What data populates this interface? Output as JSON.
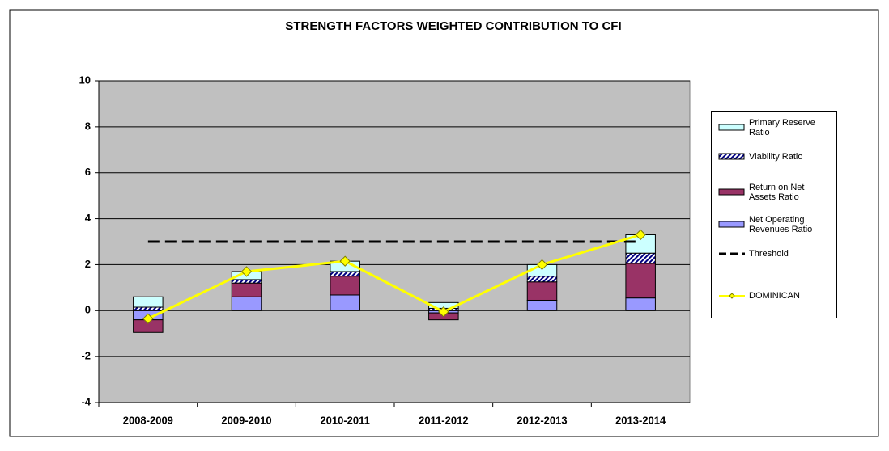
{
  "chart_data": {
    "type": "bar",
    "stacked": true,
    "title": "STRENGTH FACTORS WEIGHTED CONTRIBUTION TO CFI",
    "categories": [
      "2008-2009",
      "2009-2010",
      "2010-2011",
      "2011-2012",
      "2012-2013",
      "2013-2014"
    ],
    "series": [
      {
        "name": "Net Operating Revenues Ratio",
        "type": "bar",
        "color": "#9999ff",
        "values": [
          -0.4,
          0.6,
          0.68,
          -0.1,
          0.45,
          0.55
        ]
      },
      {
        "name": "Return on Net Assets Ratio",
        "type": "bar",
        "color": "#993366",
        "values": [
          -0.55,
          0.6,
          0.82,
          -0.3,
          0.8,
          1.5
        ]
      },
      {
        "name": "Viability Ratio",
        "type": "bar",
        "color": "#000080",
        "hatched": true,
        "values": [
          0.15,
          0.15,
          0.2,
          0.1,
          0.25,
          0.45
        ]
      },
      {
        "name": "Primary Reserve Ratio",
        "type": "bar",
        "color": "#ccffff",
        "values": [
          0.45,
          0.35,
          0.45,
          0.25,
          0.5,
          0.8
        ]
      },
      {
        "name": "Threshold",
        "type": "line",
        "color": "#000000",
        "dashed": true,
        "values": [
          3,
          3,
          3,
          3,
          3,
          3
        ]
      },
      {
        "name": "DOMINICAN",
        "type": "line",
        "color": "#ffff00",
        "marker": "diamond",
        "values": [
          -0.35,
          1.7,
          2.15,
          -0.05,
          2.0,
          3.3
        ]
      }
    ],
    "ylim": [
      -4,
      10
    ],
    "yticks": [
      -4,
      -2,
      0,
      2,
      4,
      6,
      8,
      10
    ],
    "grid": true,
    "plot_background": "#c0c0c0"
  }
}
